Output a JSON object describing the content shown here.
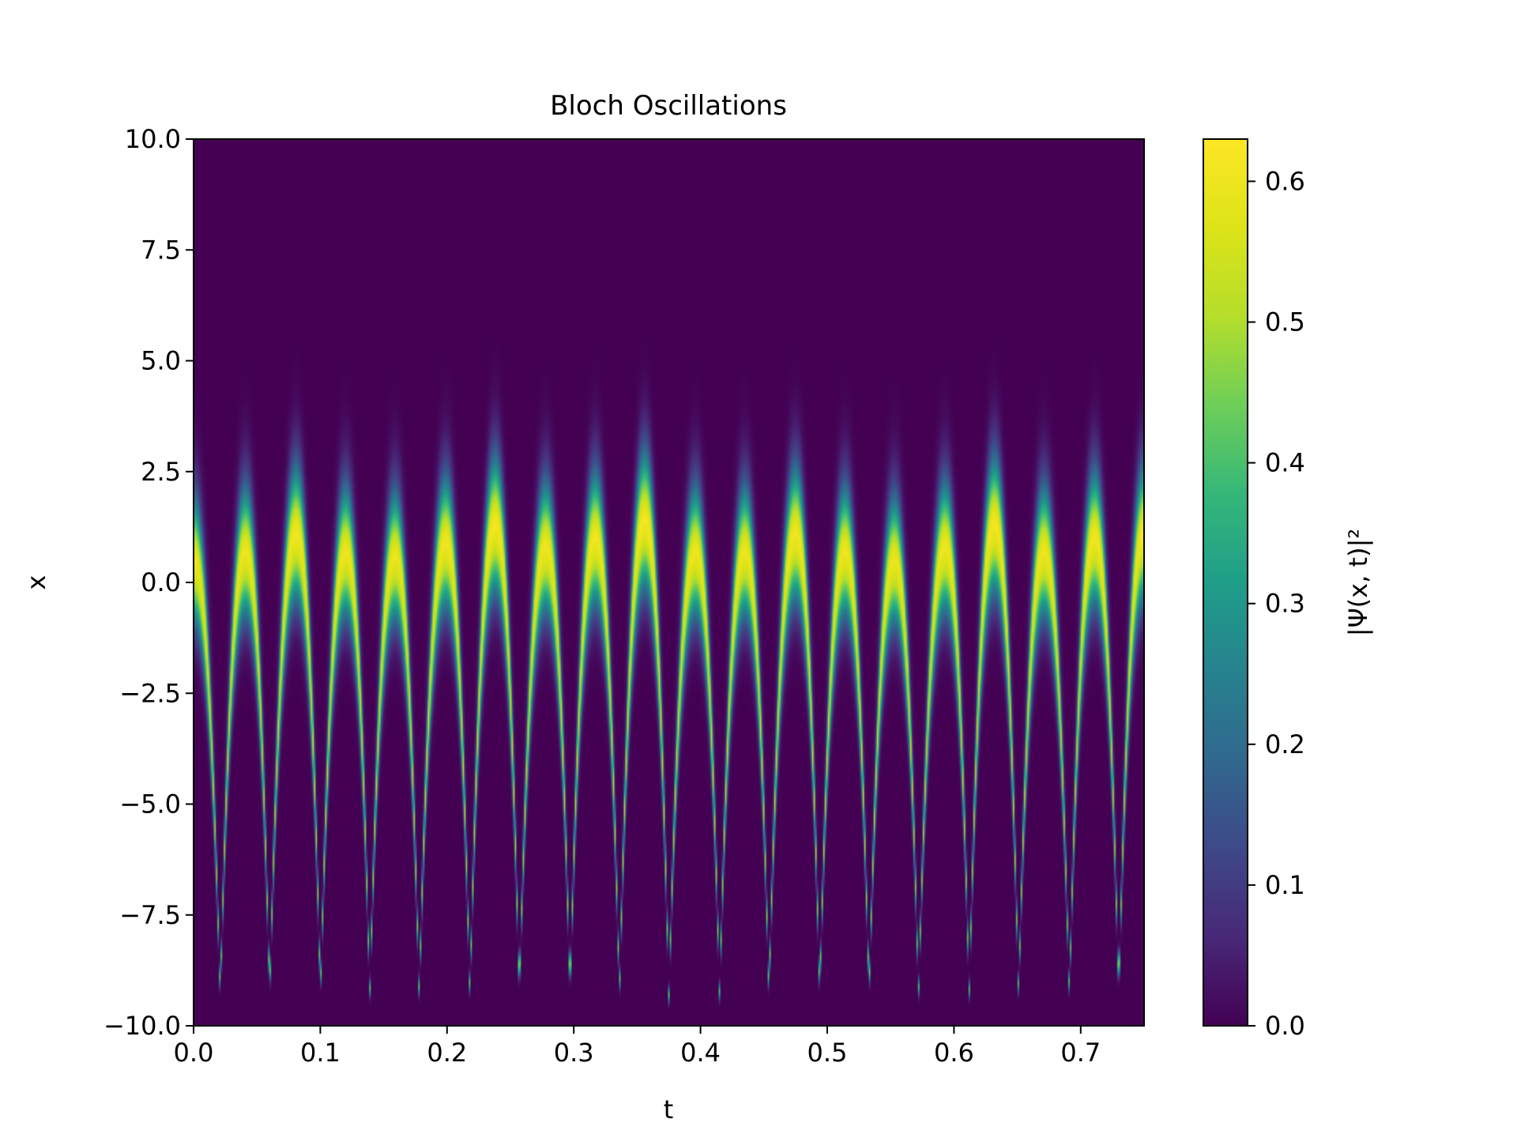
{
  "chart_data": {
    "type": "heatmap",
    "title": "Bloch Oscillations",
    "xlabel": "t",
    "ylabel": "x",
    "xlim": [
      0.0,
      0.75
    ],
    "ylim": [
      -10.0,
      10.0
    ],
    "x_ticks": [
      "0.0",
      "0.1",
      "0.2",
      "0.3",
      "0.4",
      "0.5",
      "0.6",
      "0.7"
    ],
    "y_ticks": [
      "10.0",
      "7.5",
      "5.0",
      "2.5",
      "0.0",
      "−2.5",
      "−5.0",
      "−7.5",
      "−10.0"
    ],
    "colorbar": {
      "label": "|Ψ(x, t)|²",
      "ticks": [
        "0.0",
        "0.1",
        "0.2",
        "0.3",
        "0.4",
        "0.5",
        "0.6"
      ],
      "range": [
        0.0,
        0.63
      ],
      "colormap": "viridis"
    },
    "grid": false,
    "bloch_period": 0.0394,
    "oscillation_count": 19,
    "turning_point_min_x": -9.3,
    "packet_peak_max_x": 1.5,
    "turning_point_times": [
      0.021,
      0.06,
      0.1,
      0.139,
      0.178,
      0.218,
      0.257,
      0.297,
      0.336,
      0.375,
      0.415,
      0.454,
      0.494,
      0.533,
      0.572,
      0.612,
      0.651,
      0.691,
      0.73
    ],
    "peak_times": [
      0.0,
      0.041,
      0.081,
      0.12,
      0.159,
      0.199,
      0.238,
      0.278,
      0.317,
      0.356,
      0.396,
      0.435,
      0.475,
      0.514,
      0.553,
      0.593,
      0.632,
      0.671,
      0.711,
      0.75
    ],
    "peak_positions": [
      0.4,
      0.6,
      1.0,
      0.6,
      0.5,
      0.8,
      1.2,
      0.7,
      0.9,
      1.3,
      0.6,
      0.6,
      1.0,
      0.6,
      0.4,
      0.7,
      1.2,
      0.6,
      0.9,
      1.0
    ]
  }
}
